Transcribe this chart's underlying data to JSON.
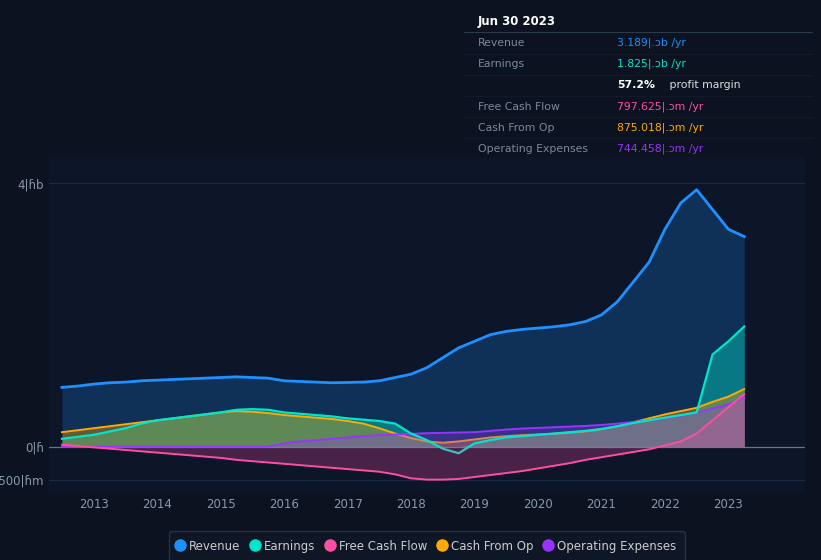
{
  "bg_color": "#0c1220",
  "plot_bg_color": "#0c1628",
  "ylim": [
    -700,
    4400
  ],
  "yticks": [
    -500,
    0,
    4000
  ],
  "ytick_labels": [
    "-500|ɦm",
    "0|ɦ",
    "4|ɦb"
  ],
  "xlim": [
    2012.3,
    2024.2
  ],
  "xticks": [
    2013,
    2014,
    2015,
    2016,
    2017,
    2018,
    2019,
    2020,
    2021,
    2022,
    2023
  ],
  "grid_color": "#1a2e48",
  "colors": {
    "revenue": "#1e90ff",
    "earnings": "#00e5cc",
    "free_cash_flow": "#ff4da6",
    "cash_from_op": "#ffaa00",
    "operating_expenses": "#9933ff"
  },
  "x": [
    2012.5,
    2012.75,
    2013.0,
    2013.25,
    2013.5,
    2013.75,
    2014.0,
    2014.25,
    2014.5,
    2014.75,
    2015.0,
    2015.25,
    2015.5,
    2015.75,
    2016.0,
    2016.25,
    2016.5,
    2016.75,
    2017.0,
    2017.25,
    2017.5,
    2017.75,
    2018.0,
    2018.25,
    2018.5,
    2018.75,
    2019.0,
    2019.25,
    2019.5,
    2019.75,
    2020.0,
    2020.25,
    2020.5,
    2020.75,
    2021.0,
    2021.25,
    2021.5,
    2021.75,
    2022.0,
    2022.25,
    2022.5,
    2022.75,
    2023.0,
    2023.25
  ],
  "revenue": [
    900,
    920,
    950,
    970,
    980,
    1000,
    1010,
    1020,
    1030,
    1040,
    1050,
    1060,
    1050,
    1040,
    1000,
    990,
    980,
    970,
    975,
    980,
    1000,
    1050,
    1100,
    1200,
    1350,
    1500,
    1600,
    1700,
    1750,
    1780,
    1800,
    1820,
    1850,
    1900,
    2000,
    2200,
    2500,
    2800,
    3300,
    3700,
    3900,
    3600,
    3300,
    3189
  ],
  "earnings": [
    120,
    150,
    180,
    230,
    280,
    350,
    400,
    430,
    460,
    490,
    520,
    560,
    570,
    560,
    520,
    500,
    480,
    460,
    430,
    410,
    390,
    350,
    200,
    100,
    -30,
    -100,
    50,
    100,
    140,
    160,
    180,
    200,
    220,
    240,
    270,
    310,
    360,
    400,
    440,
    480,
    520,
    1400,
    1600,
    1825
  ],
  "free_cash_flow": [
    30,
    10,
    -10,
    -30,
    -50,
    -70,
    -90,
    -110,
    -130,
    -150,
    -170,
    -200,
    -220,
    -240,
    -260,
    -280,
    -300,
    -320,
    -340,
    -360,
    -380,
    -420,
    -480,
    -500,
    -500,
    -490,
    -460,
    -430,
    -400,
    -370,
    -330,
    -290,
    -250,
    -200,
    -160,
    -120,
    -80,
    -40,
    20,
    80,
    200,
    400,
    600,
    798
  ],
  "cash_from_op": [
    220,
    250,
    280,
    310,
    340,
    370,
    400,
    430,
    460,
    490,
    520,
    540,
    530,
    510,
    480,
    460,
    440,
    420,
    390,
    350,
    280,
    200,
    130,
    80,
    60,
    80,
    110,
    140,
    160,
    175,
    185,
    195,
    210,
    230,
    265,
    310,
    370,
    430,
    490,
    540,
    590,
    680,
    760,
    875
  ],
  "operating_expenses": [
    0,
    0,
    0,
    0,
    0,
    0,
    0,
    0,
    0,
    0,
    0,
    0,
    0,
    0,
    50,
    80,
    100,
    120,
    140,
    160,
    175,
    185,
    195,
    205,
    210,
    215,
    220,
    240,
    260,
    275,
    285,
    295,
    305,
    315,
    330,
    350,
    375,
    400,
    430,
    470,
    520,
    580,
    640,
    744
  ],
  "legend": [
    {
      "label": "Revenue",
      "color": "#1e90ff"
    },
    {
      "label": "Earnings",
      "color": "#00e5cc"
    },
    {
      "label": "Free Cash Flow",
      "color": "#ff4da6"
    },
    {
      "label": "Cash From Op",
      "color": "#ffaa00"
    },
    {
      "label": "Operating Expenses",
      "color": "#9933ff"
    }
  ],
  "infobox_title": "Jun 30 2023",
  "infobox_rows": [
    {
      "label": "Revenue",
      "value": "3.189|.ɔb /yr",
      "color": "#1e90ff"
    },
    {
      "label": "Earnings",
      "value": "1.825|.ɔb /yr",
      "color": "#00e5cc"
    },
    {
      "label": "",
      "value": "57.2% profit margin",
      "color": "#ffffff"
    },
    {
      "label": "Free Cash Flow",
      "value": "797.625|.ɔm /yr",
      "color": "#ff4da6"
    },
    {
      "label": "Cash From Op",
      "value": "875.018|.ɔm /yr",
      "color": "#ffaa00"
    },
    {
      "label": "Operating Expenses",
      "value": "744.458|.ɔm /yr",
      "color": "#9933ff"
    }
  ]
}
